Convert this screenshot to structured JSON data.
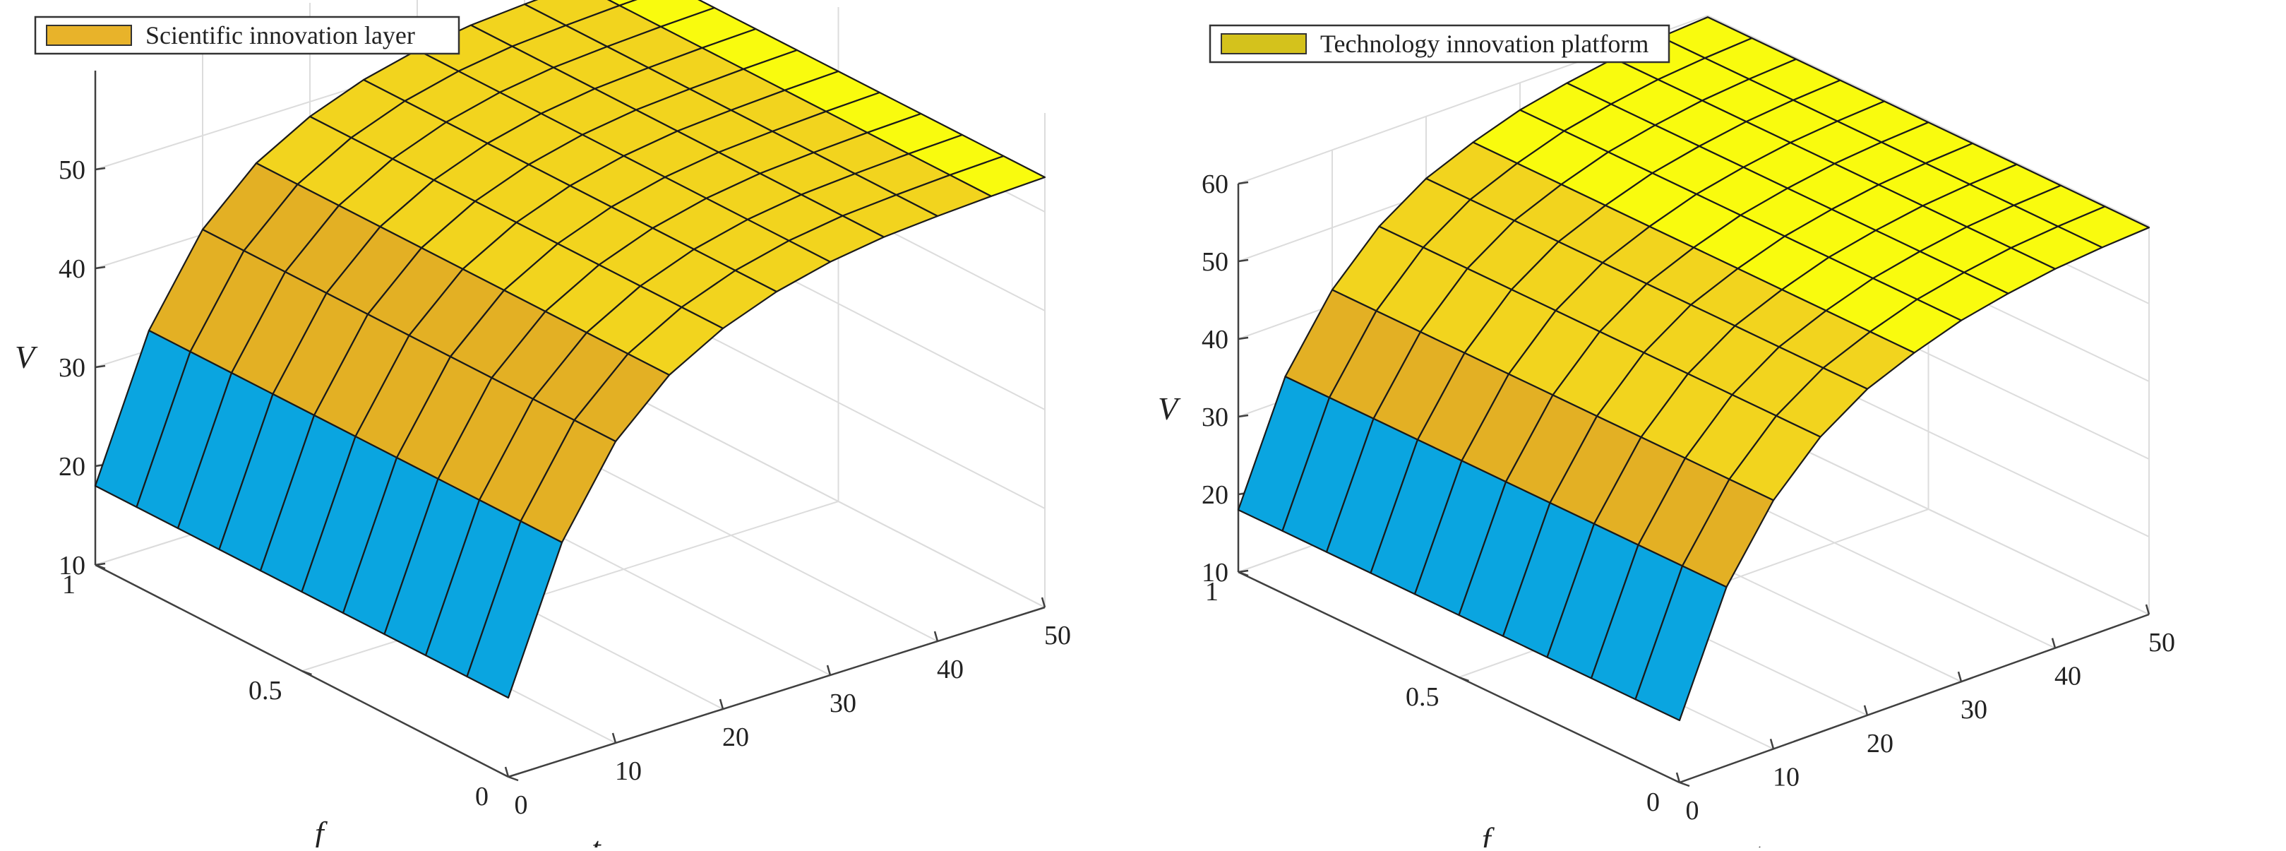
{
  "chart_data": [
    {
      "type": "surface",
      "legend": "Scientific innovation layer",
      "legend_color": "#E8B32A",
      "xlabel": "t",
      "ylabel": "f",
      "zlabel": "V",
      "t_ticks": [
        "0",
        "10",
        "20",
        "30",
        "40",
        "50"
      ],
      "f_ticks": [
        "0",
        "0.5",
        "1"
      ],
      "v_ticks": [
        "10",
        "20",
        "30",
        "40",
        "50"
      ],
      "t": [
        0,
        5,
        10,
        15,
        20,
        25,
        30,
        35,
        40,
        45,
        50
      ],
      "f": [
        0,
        0.1,
        0.2,
        0.3,
        0.4,
        0.5,
        0.6,
        0.7,
        0.8,
        0.9,
        1.0
      ],
      "V_of_t": [
        18,
        32,
        40.5,
        45.5,
        48.5,
        50.5,
        51.8,
        52.6,
        53.0,
        53.3,
        53.5
      ],
      "zlim": [
        10,
        60
      ],
      "grid": "on",
      "legend_position": "top-left"
    },
    {
      "type": "surface",
      "legend": "Technology innovation platform",
      "legend_color": "#D4C21C",
      "xlabel": "t",
      "ylabel": "f",
      "zlabel": "V",
      "t_ticks": [
        "0",
        "10",
        "20",
        "30",
        "40",
        "50"
      ],
      "f_ticks": [
        "0",
        "0.5",
        "1"
      ],
      "v_ticks": [
        "10",
        "20",
        "30",
        "40",
        "50",
        "60"
      ],
      "t": [
        0,
        5,
        10,
        15,
        20,
        25,
        30,
        35,
        40,
        45,
        50
      ],
      "f": [
        0,
        0.1,
        0.2,
        0.3,
        0.4,
        0.5,
        0.6,
        0.7,
        0.8,
        0.9,
        1.0
      ],
      "V_of_t": [
        18,
        33,
        42,
        48,
        52,
        54.5,
        56.5,
        57.8,
        58.8,
        59.4,
        59.8
      ],
      "zlim": [
        10,
        60
      ],
      "grid": "on",
      "legend_position": "top-left"
    }
  ],
  "colormap": [
    "#3E26A8",
    "#0AA5E0",
    "#1FC46F",
    "#E3B024",
    "#F2D41E",
    "#F9FB0E"
  ]
}
